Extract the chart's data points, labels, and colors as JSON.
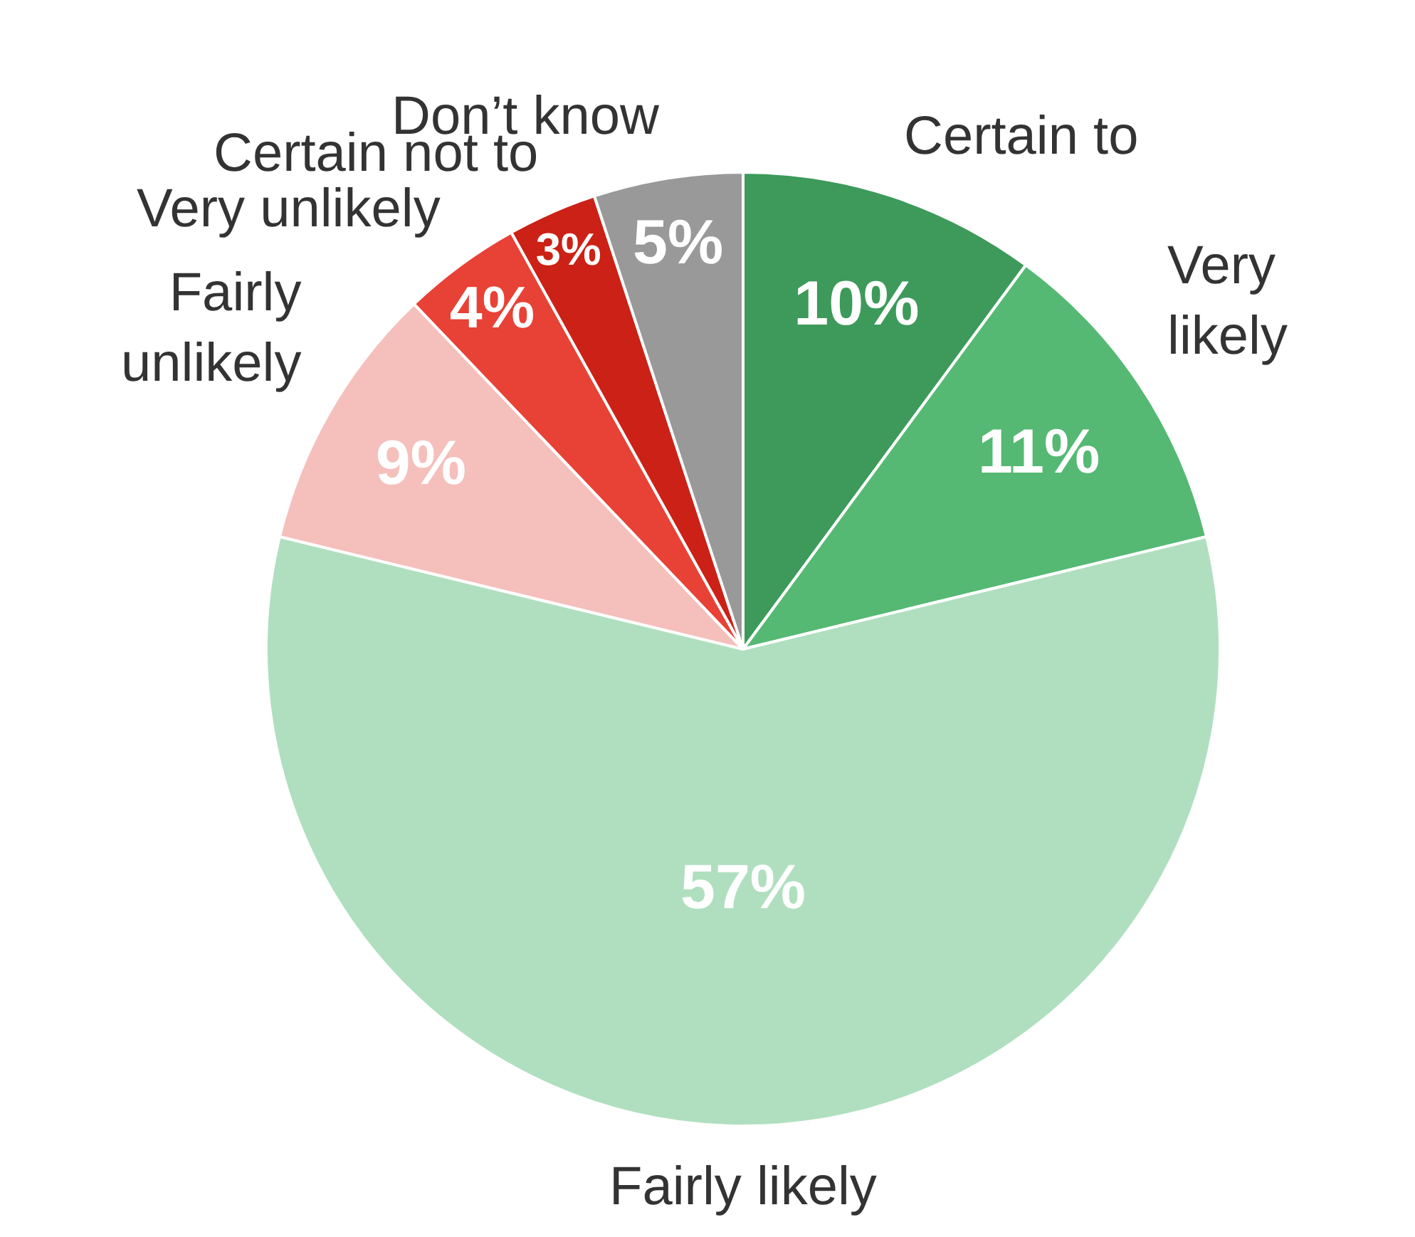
{
  "chart_data": {
    "type": "pie",
    "categories": [
      "Certain to",
      "Very likely",
      "Fairly likely",
      "Fairly unlikely",
      "Very unlikely",
      "Certain not to",
      "Don’t know"
    ],
    "values": [
      10,
      11,
      57,
      9,
      4,
      3,
      5
    ],
    "value_labels": [
      "10%",
      "11%",
      "57%",
      "9%",
      "4%",
      "3%",
      "5%"
    ],
    "colors": [
      "#3d9a5a",
      "#55b973",
      "#b0dfbf",
      "#f5bfbc",
      "#e84136",
      "#cc2116",
      "#999999"
    ]
  }
}
